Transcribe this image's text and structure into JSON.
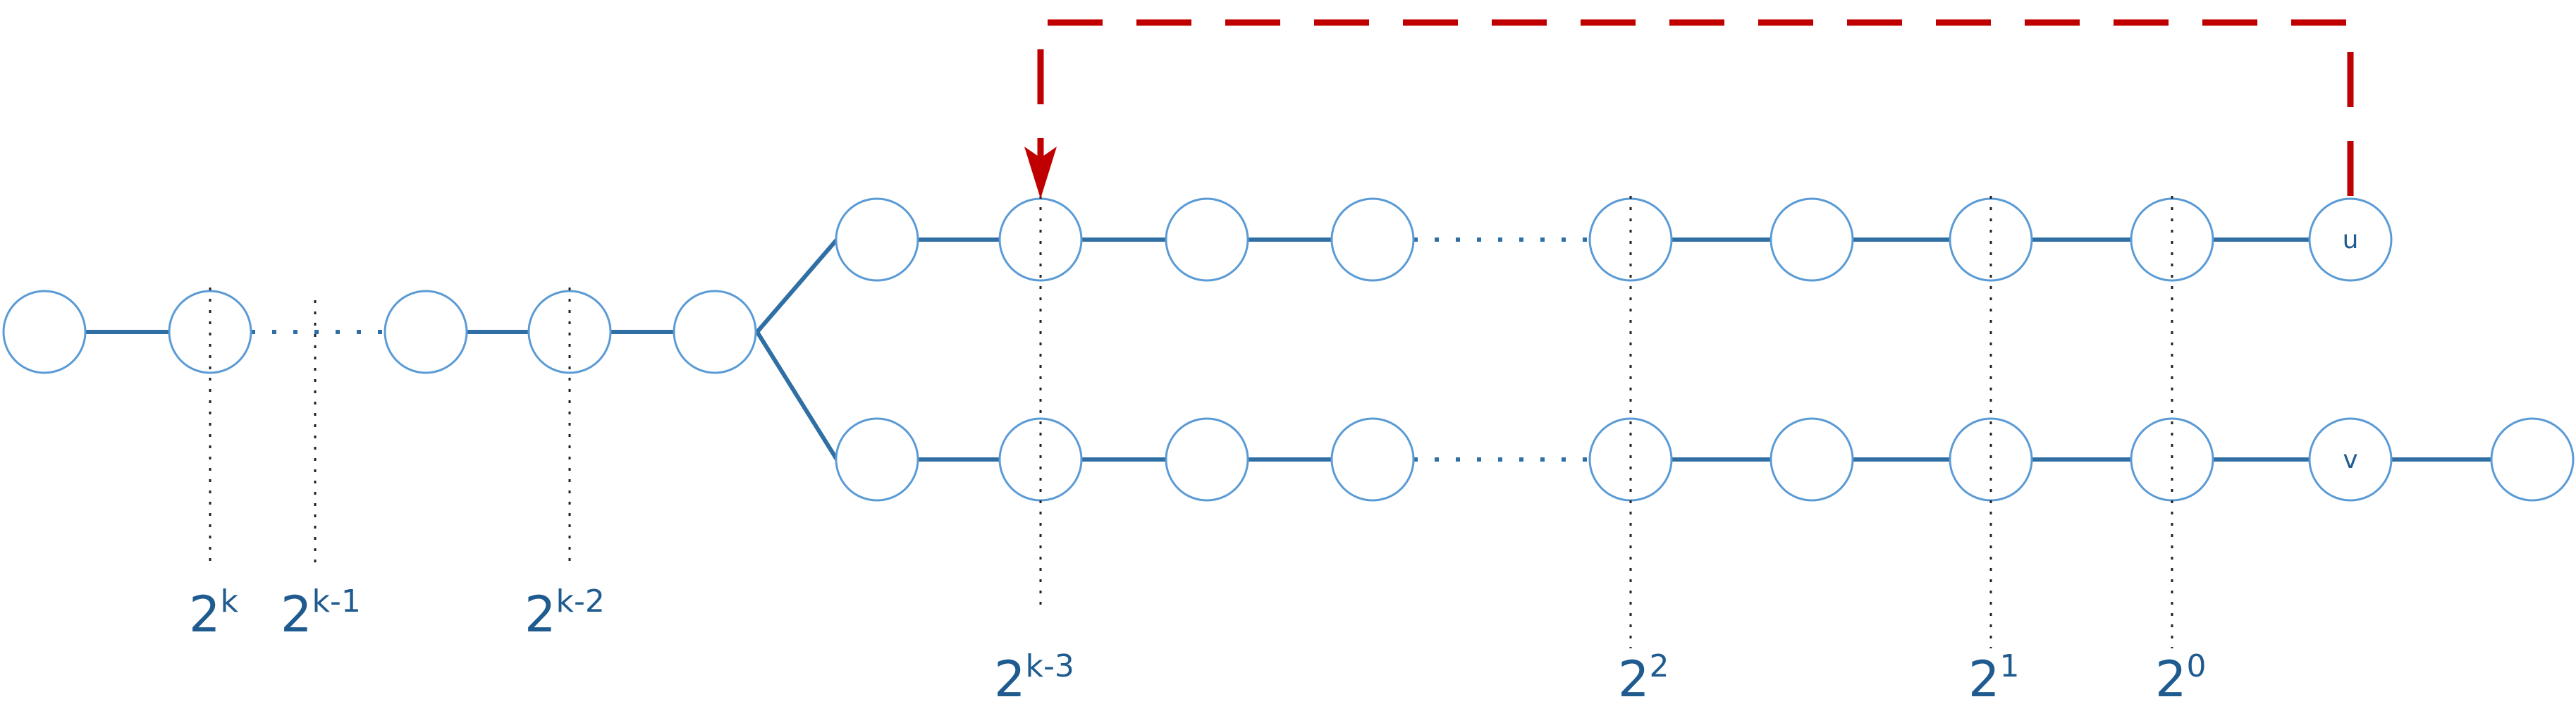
{
  "colors": {
    "edge": "#2f6fa3",
    "node_border": "#5b9bd5",
    "label": "#1f5b8f",
    "back_edge": "#c00000"
  },
  "node_labels": {
    "u": "u",
    "v": "v"
  },
  "power_labels": [
    {
      "id": "2k",
      "base": "2",
      "exp": "k"
    },
    {
      "id": "2k-1",
      "base": "2",
      "exp": "k-1"
    },
    {
      "id": "2k-2",
      "base": "2",
      "exp": "k-2"
    },
    {
      "id": "2k-3",
      "base": "2",
      "exp": "k-3"
    },
    {
      "id": "22",
      "base": "2",
      "exp": "2"
    },
    {
      "id": "21",
      "base": "2",
      "exp": "1"
    },
    {
      "id": "20",
      "base": "2",
      "exp": "0"
    }
  ]
}
